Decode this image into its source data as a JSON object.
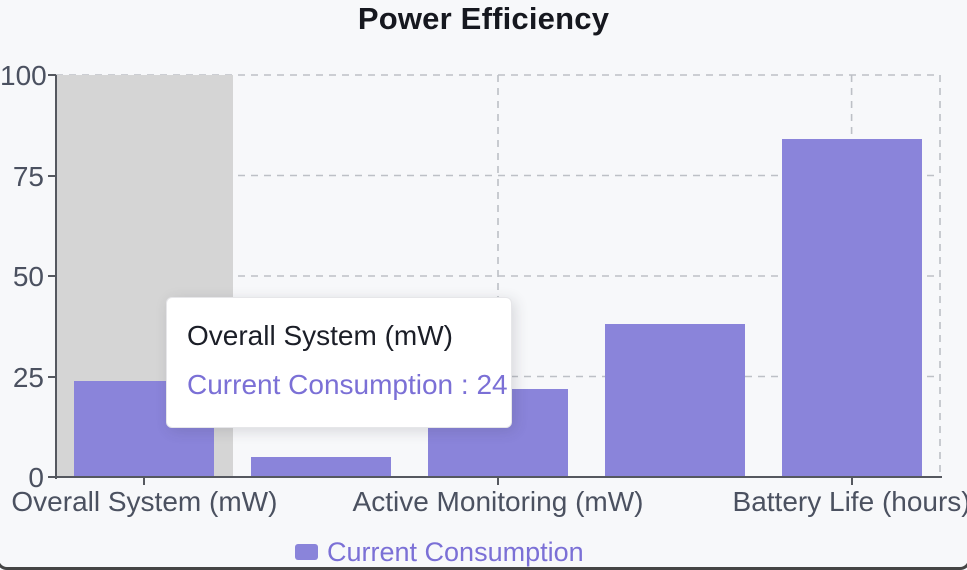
{
  "title": "Power Efficiency",
  "chart_data": {
    "type": "bar",
    "values": [
      24,
      5,
      22,
      38,
      84
    ],
    "num_slots": 5,
    "x_tick_labels": [
      "Overall System (mW)",
      "Active Monitoring (mW)",
      "Battery Life (hours)"
    ],
    "x_tick_slot_indices": [
      0,
      2,
      4
    ],
    "y_ticks": [
      0,
      25,
      50,
      75,
      100
    ],
    "ylim": [
      0,
      100
    ],
    "grid": "dashed",
    "legend_position": "bottom",
    "series_name": "Current Consumption",
    "hover": {
      "highlighted_slot_index": 0
    }
  },
  "tooltip": {
    "title": "Overall System (mW)",
    "series_label": "Current Consumption",
    "separator": " : ",
    "value": "24"
  },
  "legend": {
    "label": "Current Consumption"
  },
  "colors": {
    "bar": "#8a84da",
    "accent_text": "#7b70d6",
    "highlight_band": "#d5d5d5",
    "background": "#f7f8fa",
    "gridline": "#bdc0c6",
    "axis": "#55585f",
    "axis_label": "#4b5160",
    "title": "#16181f"
  }
}
